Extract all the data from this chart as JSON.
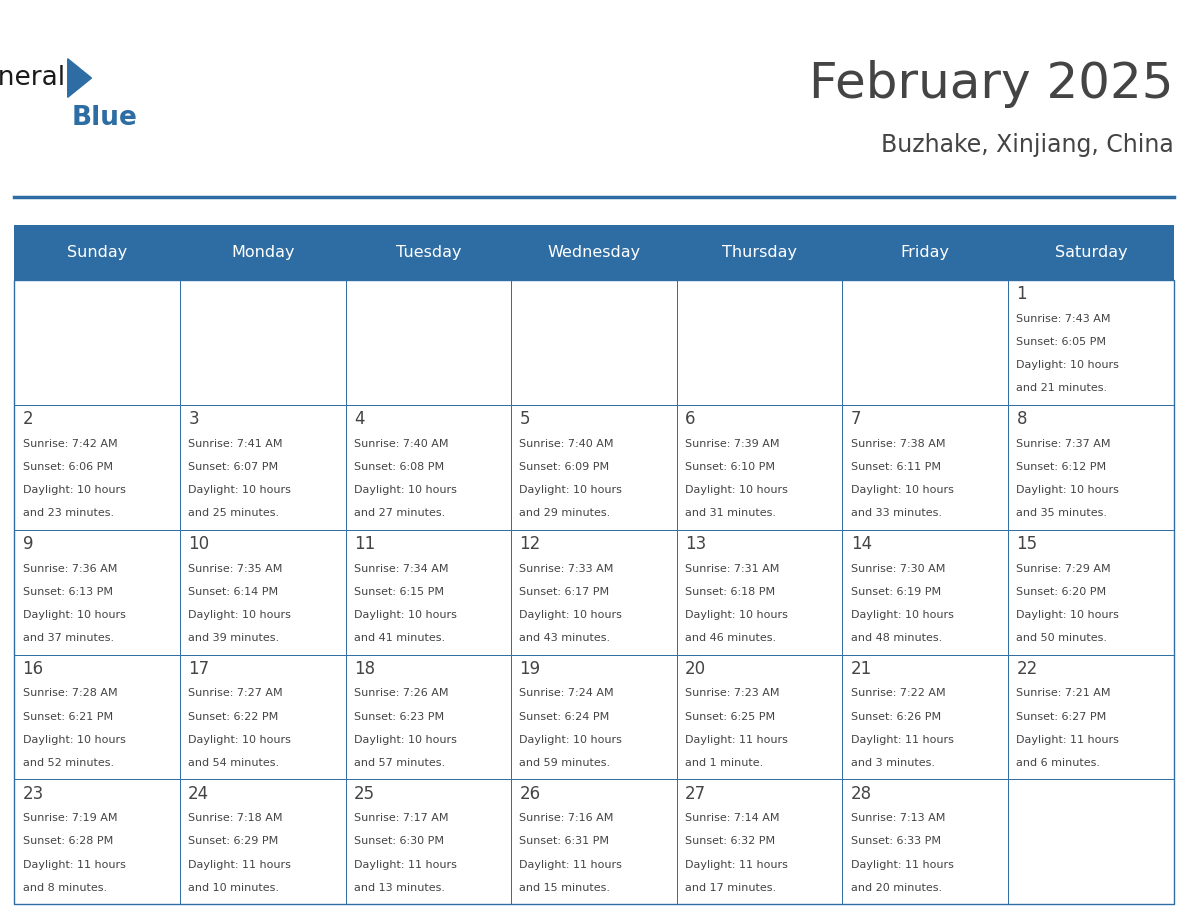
{
  "title": "February 2025",
  "subtitle": "Buzhake, Xinjiang, China",
  "header_bg": "#2E6DA4",
  "header_text": "#FFFFFF",
  "cell_bg": "#FFFFFF",
  "border_color": "#2E6DA4",
  "text_color": "#444444",
  "days_of_week": [
    "Sunday",
    "Monday",
    "Tuesday",
    "Wednesday",
    "Thursday",
    "Friday",
    "Saturday"
  ],
  "calendar_data": [
    [
      null,
      null,
      null,
      null,
      null,
      null,
      {
        "day": 1,
        "sunrise": "7:43 AM",
        "sunset": "6:05 PM",
        "daylight": "10 hours",
        "daylight2": "and 21 minutes."
      }
    ],
    [
      {
        "day": 2,
        "sunrise": "7:42 AM",
        "sunset": "6:06 PM",
        "daylight": "10 hours",
        "daylight2": "and 23 minutes."
      },
      {
        "day": 3,
        "sunrise": "7:41 AM",
        "sunset": "6:07 PM",
        "daylight": "10 hours",
        "daylight2": "and 25 minutes."
      },
      {
        "day": 4,
        "sunrise": "7:40 AM",
        "sunset": "6:08 PM",
        "daylight": "10 hours",
        "daylight2": "and 27 minutes."
      },
      {
        "day": 5,
        "sunrise": "7:40 AM",
        "sunset": "6:09 PM",
        "daylight": "10 hours",
        "daylight2": "and 29 minutes."
      },
      {
        "day": 6,
        "sunrise": "7:39 AM",
        "sunset": "6:10 PM",
        "daylight": "10 hours",
        "daylight2": "and 31 minutes."
      },
      {
        "day": 7,
        "sunrise": "7:38 AM",
        "sunset": "6:11 PM",
        "daylight": "10 hours",
        "daylight2": "and 33 minutes."
      },
      {
        "day": 8,
        "sunrise": "7:37 AM",
        "sunset": "6:12 PM",
        "daylight": "10 hours",
        "daylight2": "and 35 minutes."
      }
    ],
    [
      {
        "day": 9,
        "sunrise": "7:36 AM",
        "sunset": "6:13 PM",
        "daylight": "10 hours",
        "daylight2": "and 37 minutes."
      },
      {
        "day": 10,
        "sunrise": "7:35 AM",
        "sunset": "6:14 PM",
        "daylight": "10 hours",
        "daylight2": "and 39 minutes."
      },
      {
        "day": 11,
        "sunrise": "7:34 AM",
        "sunset": "6:15 PM",
        "daylight": "10 hours",
        "daylight2": "and 41 minutes."
      },
      {
        "day": 12,
        "sunrise": "7:33 AM",
        "sunset": "6:17 PM",
        "daylight": "10 hours",
        "daylight2": "and 43 minutes."
      },
      {
        "day": 13,
        "sunrise": "7:31 AM",
        "sunset": "6:18 PM",
        "daylight": "10 hours",
        "daylight2": "and 46 minutes."
      },
      {
        "day": 14,
        "sunrise": "7:30 AM",
        "sunset": "6:19 PM",
        "daylight": "10 hours",
        "daylight2": "and 48 minutes."
      },
      {
        "day": 15,
        "sunrise": "7:29 AM",
        "sunset": "6:20 PM",
        "daylight": "10 hours",
        "daylight2": "and 50 minutes."
      }
    ],
    [
      {
        "day": 16,
        "sunrise": "7:28 AM",
        "sunset": "6:21 PM",
        "daylight": "10 hours",
        "daylight2": "and 52 minutes."
      },
      {
        "day": 17,
        "sunrise": "7:27 AM",
        "sunset": "6:22 PM",
        "daylight": "10 hours",
        "daylight2": "and 54 minutes."
      },
      {
        "day": 18,
        "sunrise": "7:26 AM",
        "sunset": "6:23 PM",
        "daylight": "10 hours",
        "daylight2": "and 57 minutes."
      },
      {
        "day": 19,
        "sunrise": "7:24 AM",
        "sunset": "6:24 PM",
        "daylight": "10 hours",
        "daylight2": "and 59 minutes."
      },
      {
        "day": 20,
        "sunrise": "7:23 AM",
        "sunset": "6:25 PM",
        "daylight": "11 hours",
        "daylight2": "and 1 minute."
      },
      {
        "day": 21,
        "sunrise": "7:22 AM",
        "sunset": "6:26 PM",
        "daylight": "11 hours",
        "daylight2": "and 3 minutes."
      },
      {
        "day": 22,
        "sunrise": "7:21 AM",
        "sunset": "6:27 PM",
        "daylight": "11 hours",
        "daylight2": "and 6 minutes."
      }
    ],
    [
      {
        "day": 23,
        "sunrise": "7:19 AM",
        "sunset": "6:28 PM",
        "daylight": "11 hours",
        "daylight2": "and 8 minutes."
      },
      {
        "day": 24,
        "sunrise": "7:18 AM",
        "sunset": "6:29 PM",
        "daylight": "11 hours",
        "daylight2": "and 10 minutes."
      },
      {
        "day": 25,
        "sunrise": "7:17 AM",
        "sunset": "6:30 PM",
        "daylight": "11 hours",
        "daylight2": "and 13 minutes."
      },
      {
        "day": 26,
        "sunrise": "7:16 AM",
        "sunset": "6:31 PM",
        "daylight": "11 hours",
        "daylight2": "and 15 minutes."
      },
      {
        "day": 27,
        "sunrise": "7:14 AM",
        "sunset": "6:32 PM",
        "daylight": "11 hours",
        "daylight2": "and 17 minutes."
      },
      {
        "day": 28,
        "sunrise": "7:13 AM",
        "sunset": "6:33 PM",
        "daylight": "11 hours",
        "daylight2": "and 20 minutes."
      },
      null
    ]
  ],
  "logo_color1": "#1a1a1a",
  "logo_color2": "#2E6DA4",
  "fig_width": 11.88,
  "fig_height": 9.18,
  "fig_dpi": 100
}
